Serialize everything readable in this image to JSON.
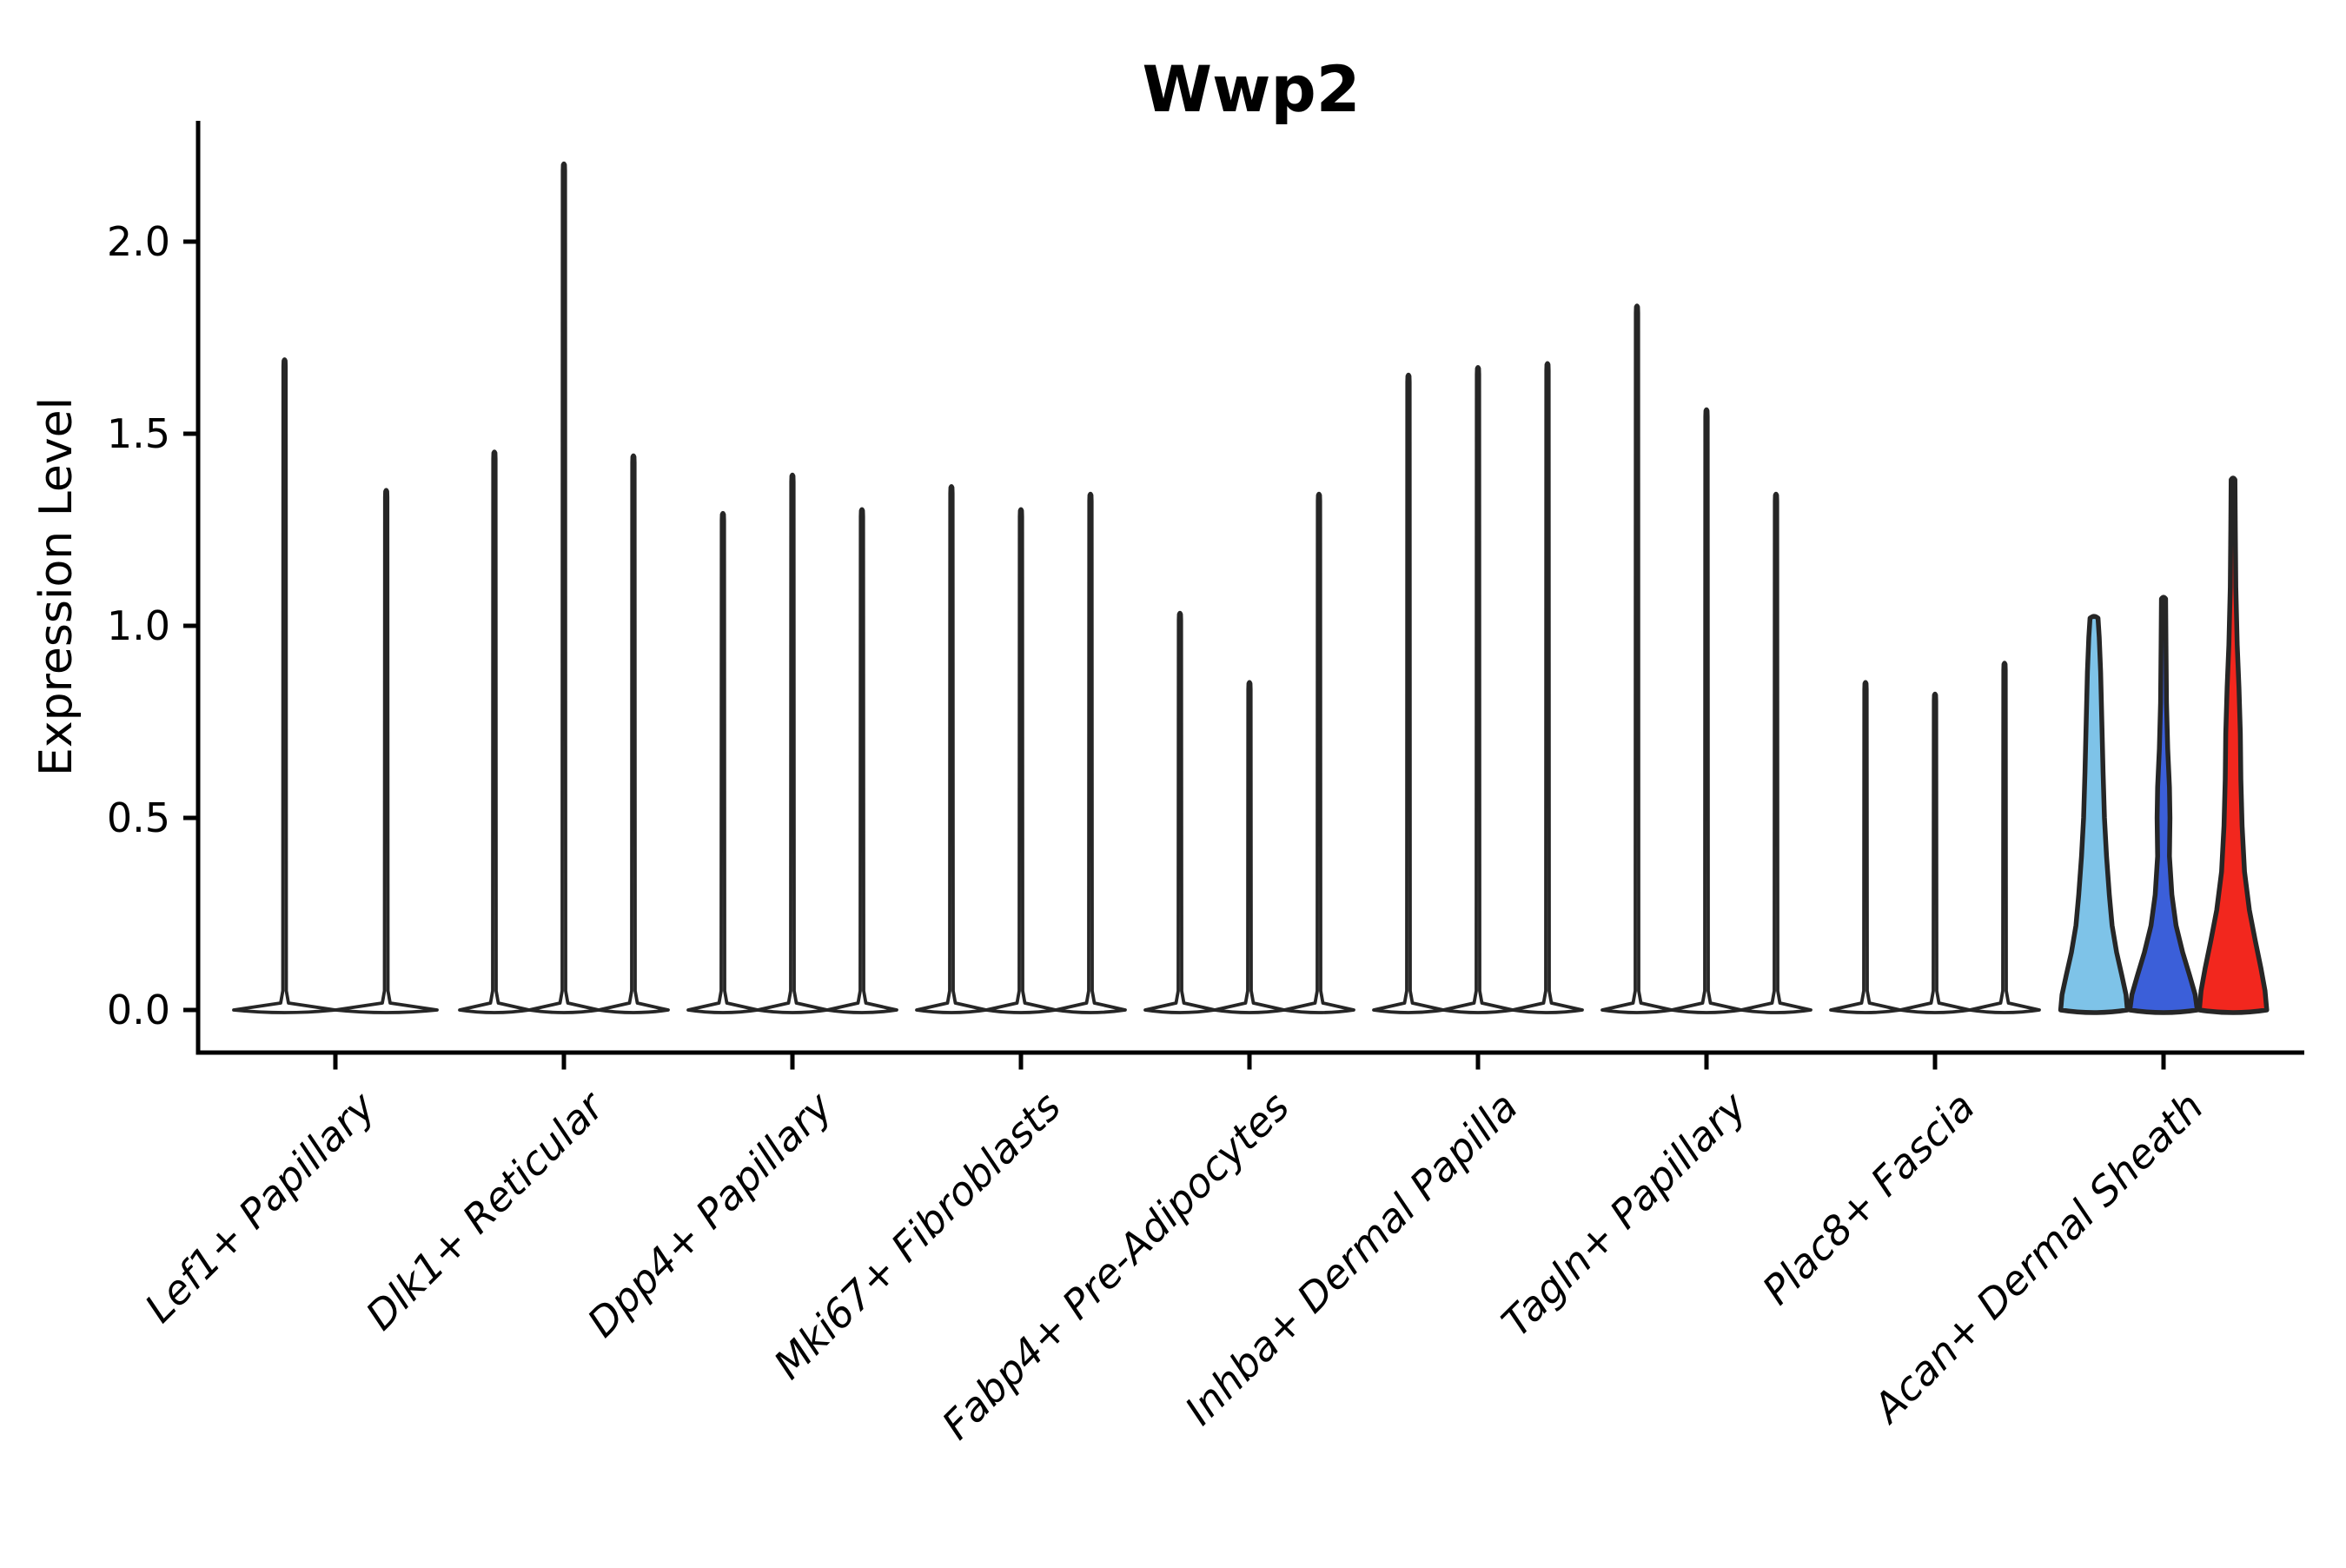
{
  "title": "Wwp2",
  "y_axis": {
    "label": "Expression Level",
    "tick_labels": [
      "0.0",
      "0.5",
      "1.0",
      "1.5",
      "2.0"
    ],
    "tick_values": [
      0.0,
      0.5,
      1.0,
      1.5,
      2.0
    ]
  },
  "x_axis": {
    "categories": [
      "Lef1+ Papillary",
      "Dlk1+ Reticular",
      "Dpp4+ Papillary",
      "Mki67+ Fibroblasts",
      "Fabp4+ Pre-Adipocytes",
      "Inhba+ Dermal Papilla",
      "Tagln+ Papillary",
      "Plac8+ Fascia",
      "Acan+ Dermal Sheath"
    ]
  },
  "colors": {
    "spike_outline": "#262626",
    "violin_outline": "#262626",
    "sky_blue_fill": "#7EC3E8",
    "royal_blue_fill": "#3B5FD9",
    "red_fill": "#F2271E",
    "axis_color": "#000000",
    "background": "#ffffff"
  },
  "chart_data": {
    "type": "violin",
    "title": "Wwp2",
    "xlabel": "",
    "ylabel": "Expression Level",
    "ylim": [
      -0.11,
      2.31
    ],
    "yticks": [
      0.0,
      0.5,
      1.0,
      1.5,
      2.0
    ],
    "ytick_labels": [
      "0.0",
      "0.5",
      "1.0",
      "1.5",
      "2.0"
    ],
    "grid": false,
    "legend": "none",
    "note": "Split violin plot of Wwp2 expression; most populations show only thin zero-density spikes with sparse expressing cells; Acan+ Dermal Sheath shows three filled violins (two split fills blue-toned, one red) with substantial expression mass near zero tapering to maxima.",
    "categories": [
      "Lef1+ Papillary",
      "Dlk1+ Reticular",
      "Dpp4+ Papillary",
      "Mki67+ Fibroblasts",
      "Fabp4+ Pre-Adipocytes",
      "Inhba+ Dermal Papilla",
      "Tagln+ Papillary",
      "Plac8+ Fascia",
      "Acan+ Dermal Sheath"
    ],
    "groups": [
      {
        "category": "Lef1+ Papillary",
        "violins": [
          {
            "max": 1.69,
            "style": "spike"
          },
          {
            "max": 1.35,
            "style": "spike"
          }
        ]
      },
      {
        "category": "Dlk1+ Reticular",
        "violins": [
          {
            "max": 1.45,
            "style": "spike"
          },
          {
            "max": 2.2,
            "style": "spike"
          },
          {
            "max": 1.44,
            "style": "spike"
          }
        ]
      },
      {
        "category": "Dpp4+ Papillary",
        "violins": [
          {
            "max": 1.29,
            "style": "spike"
          },
          {
            "max": 1.39,
            "style": "spike"
          },
          {
            "max": 1.3,
            "style": "spike"
          }
        ]
      },
      {
        "category": "Mki67+ Fibroblasts",
        "violins": [
          {
            "max": 1.36,
            "style": "spike"
          },
          {
            "max": 1.3,
            "style": "spike"
          },
          {
            "max": 1.34,
            "style": "spike"
          }
        ]
      },
      {
        "category": "Fabp4+ Pre-Adipocytes",
        "violins": [
          {
            "max": 1.03,
            "style": "spike"
          },
          {
            "max": 0.85,
            "style": "spike"
          },
          {
            "max": 1.34,
            "style": "spike"
          }
        ]
      },
      {
        "category": "Inhba+ Dermal Papilla",
        "violins": [
          {
            "max": 1.65,
            "style": "spike"
          },
          {
            "max": 1.67,
            "style": "spike"
          },
          {
            "max": 1.68,
            "style": "spike"
          }
        ]
      },
      {
        "category": "Tagln+ Papillary",
        "violins": [
          {
            "max": 1.83,
            "style": "spike"
          },
          {
            "max": 1.56,
            "style": "spike"
          },
          {
            "max": 1.34,
            "style": "spike"
          }
        ]
      },
      {
        "category": "Plac8+ Fascia",
        "violins": [
          {
            "max": 0.85,
            "style": "spike"
          },
          {
            "max": 0.82,
            "style": "spike"
          },
          {
            "max": 0.9,
            "style": "spike"
          }
        ]
      },
      {
        "category": "Acan+ Dermal Sheath",
        "violins": [
          {
            "max": 1.02,
            "style": "violin",
            "fill": "#7EC3E8",
            "profile": [
              [
                0,
                0.96
              ],
              [
                0.04,
                0.92
              ],
              [
                0.09,
                0.8
              ],
              [
                0.15,
                0.65
              ],
              [
                0.22,
                0.52
              ],
              [
                0.3,
                0.44
              ],
              [
                0.4,
                0.36
              ],
              [
                0.5,
                0.3
              ],
              [
                0.62,
                0.26
              ],
              [
                0.75,
                0.225
              ],
              [
                0.88,
                0.19
              ],
              [
                0.97,
                0.15
              ],
              [
                1.02,
                0.115
              ]
            ]
          },
          {
            "max": 1.07,
            "style": "violin",
            "fill": "#3B5FD9",
            "profile": [
              [
                0,
                0.97
              ],
              [
                0.04,
                0.91
              ],
              [
                0.09,
                0.75
              ],
              [
                0.15,
                0.55
              ],
              [
                0.22,
                0.36
              ],
              [
                0.3,
                0.24
              ],
              [
                0.4,
                0.17
              ],
              [
                0.5,
                0.185
              ],
              [
                0.58,
                0.17
              ],
              [
                0.68,
                0.12
              ],
              [
                0.8,
                0.085
              ],
              [
                0.95,
                0.07
              ],
              [
                1.07,
                0.06
              ]
            ]
          },
          {
            "max": 1.38,
            "style": "violin",
            "fill": "#F2271E",
            "profile": [
              [
                0,
                0.97
              ],
              [
                0.05,
                0.92
              ],
              [
                0.11,
                0.8
              ],
              [
                0.18,
                0.64
              ],
              [
                0.26,
                0.47
              ],
              [
                0.36,
                0.33
              ],
              [
                0.48,
                0.26
              ],
              [
                0.6,
                0.225
              ],
              [
                0.72,
                0.21
              ],
              [
                0.84,
                0.17
              ],
              [
                0.95,
                0.12
              ],
              [
                1.1,
                0.08
              ],
              [
                1.25,
                0.065
              ],
              [
                1.38,
                0.055
              ]
            ]
          }
        ]
      }
    ]
  }
}
